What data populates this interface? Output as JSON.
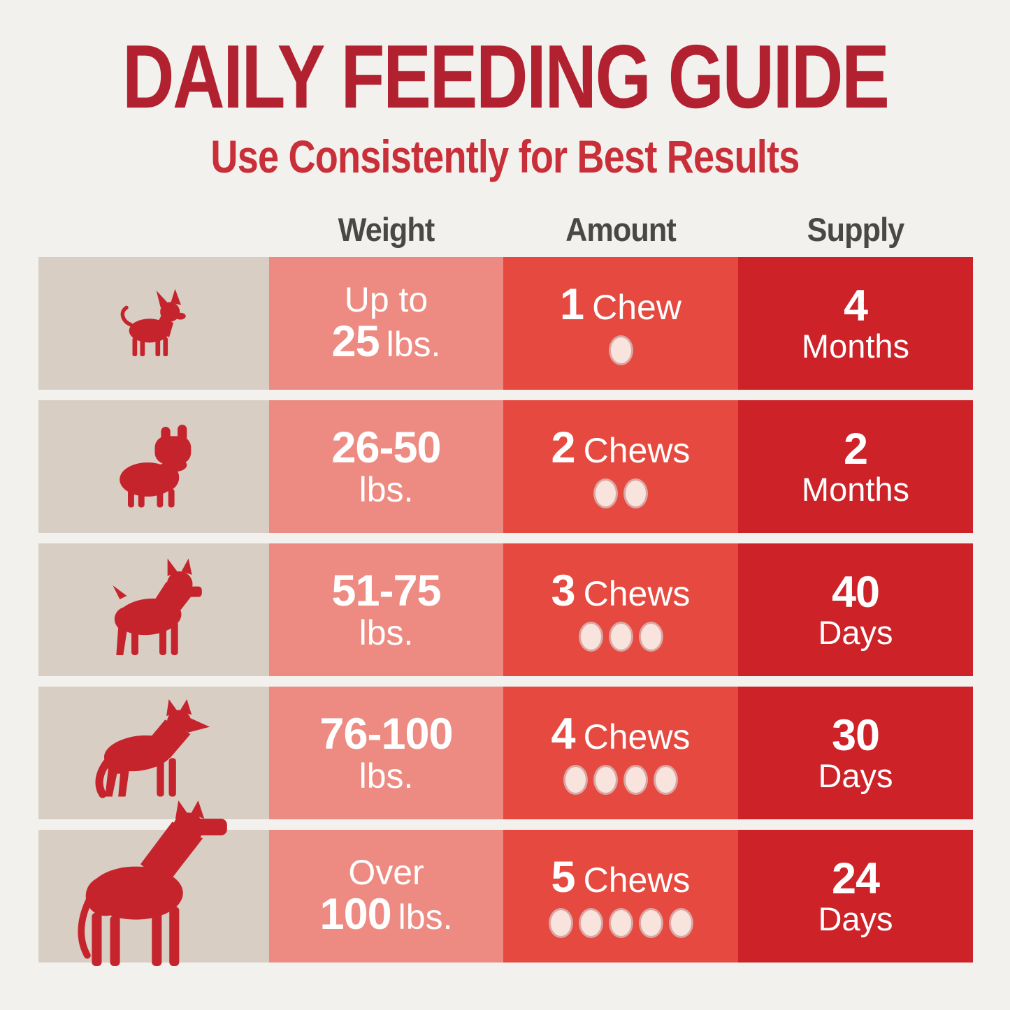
{
  "title": "DAILY FEEDING GUIDE",
  "subtitle": "Use Consistently for Best Results",
  "columns": {
    "weight": "Weight",
    "amount": "Amount",
    "supply": "Supply"
  },
  "colors": {
    "background": "#f3f1ee",
    "title_red": "#b22130",
    "subtitle_red": "#c92f38",
    "header_gray": "#4a4844",
    "dog_column_beige": "#d8cec4",
    "weight_column_salmon": "#ed8b82",
    "amount_column_red": "#e5493f",
    "supply_column_dark_red": "#cc2228",
    "dog_silhouette_red": "#c6242d",
    "chew_dot_cream": "#f8e3dd",
    "cell_text": "#ffffff"
  },
  "rows": [
    {
      "dog": "chihuahua",
      "weight_line1": "Up to",
      "weight_num": "25",
      "weight_suffix": "lbs.",
      "amount_num": "1",
      "amount_label": "Chew",
      "chews": 1,
      "supply_num": "4",
      "supply_unit": "Months"
    },
    {
      "dog": "french-bulldog",
      "weight_line1": "26-50",
      "weight_num": "",
      "weight_suffix": "lbs.",
      "amount_num": "2",
      "amount_label": "Chews",
      "chews": 2,
      "supply_num": "2",
      "supply_unit": "Months"
    },
    {
      "dog": "boxer",
      "weight_line1": "51-75",
      "weight_num": "",
      "weight_suffix": "lbs.",
      "amount_num": "3",
      "amount_label": "Chews",
      "chews": 3,
      "supply_num": "40",
      "supply_unit": "Days"
    },
    {
      "dog": "german-shepherd",
      "weight_line1": "76-100",
      "weight_num": "",
      "weight_suffix": "lbs.",
      "amount_num": "4",
      "amount_label": "Chews",
      "chews": 4,
      "supply_num": "30",
      "supply_unit": "Days"
    },
    {
      "dog": "great-dane",
      "weight_line1": "Over",
      "weight_num": "100",
      "weight_suffix": "lbs.",
      "amount_num": "5",
      "amount_label": "Chews",
      "chews": 5,
      "supply_num": "24",
      "supply_unit": "Days"
    }
  ],
  "chart_data": {
    "type": "table",
    "title": "DAILY FEEDING GUIDE",
    "subtitle": "Use Consistently for Best Results",
    "columns": [
      "Weight",
      "Amount",
      "Supply"
    ],
    "rows": [
      [
        "Up to 25 lbs.",
        "1 Chew",
        "4 Months"
      ],
      [
        "26-50 lbs.",
        "2 Chews",
        "2 Months"
      ],
      [
        "51-75 lbs.",
        "3 Chews",
        "40 Days"
      ],
      [
        "76-100 lbs.",
        "4 Chews",
        "30 Days"
      ],
      [
        "Over 100 lbs.",
        "5 Chews",
        "24 Days"
      ]
    ],
    "chews_per_row": [
      1,
      2,
      3,
      4,
      5
    ]
  }
}
